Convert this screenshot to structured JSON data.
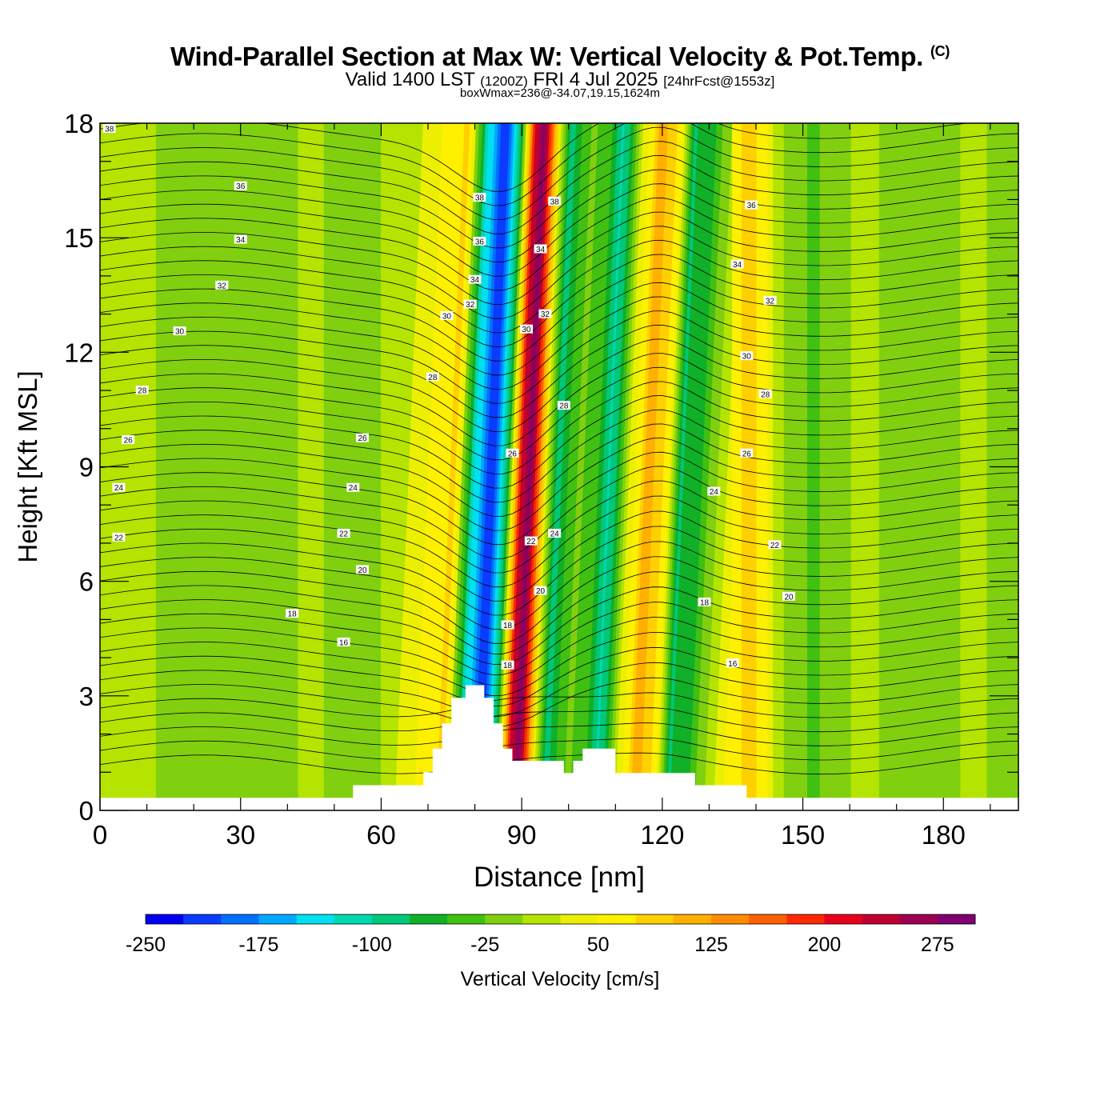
{
  "header": {
    "title": "Wind-Parallel Section at Max W: Vertical Velocity & Pot.Temp.",
    "title_mark": "(C)",
    "valid_prefix": "Valid 1400 LST",
    "valid_utc": "(1200Z)",
    "valid_date": "FRI 4 Jul 2025",
    "forecast": "[24hrFcst@1553z]",
    "box_info": "boxWmax=236@-34.07,19.15,1624m"
  },
  "chart_data": {
    "type": "heatmap",
    "xlabel": "Distance [nm]",
    "ylabel": "Height [Kft MSL]",
    "xlim": [
      0,
      196
    ],
    "ylim": [
      0,
      18
    ],
    "x_ticks": [
      0,
      30,
      60,
      90,
      120,
      150,
      180
    ],
    "y_ticks": [
      0,
      3,
      6,
      9,
      12,
      15,
      18
    ],
    "colorbar": {
      "label": "Vertical Velocity [cm/s]",
      "range": [
        -250,
        300
      ],
      "tick_values": [
        -250,
        -175,
        -100,
        -25,
        50,
        125,
        200,
        275
      ],
      "tick_labels": [
        "-250",
        "-175",
        "-100",
        "-25",
        "50",
        "125",
        "200",
        "275"
      ],
      "colors": [
        "#0000f0",
        "#0a3cff",
        "#0070ff",
        "#00a8ff",
        "#00e0f0",
        "#00d8b0",
        "#00c878",
        "#10b028",
        "#40c010",
        "#80d010",
        "#b4e400",
        "#ecf000",
        "#fff000",
        "#ffd000",
        "#ffb000",
        "#ff8c00",
        "#ff6000",
        "#ff2800",
        "#e8001c",
        "#c00030",
        "#9c0050",
        "#800070"
      ]
    },
    "velocity_bands": [
      {
        "x": 0,
        "value": 0
      },
      {
        "x": 12,
        "value": 0
      },
      {
        "x": 22,
        "value": -10
      },
      {
        "x": 35,
        "value": -15
      },
      {
        "x": 46,
        "value": 5
      },
      {
        "x": 57,
        "value": -20
      },
      {
        "x": 66,
        "value": 40
      },
      {
        "x": 73,
        "value": 80
      },
      {
        "x": 77,
        "value": -120
      },
      {
        "x": 81,
        "value": -230
      },
      {
        "x": 84,
        "value": -80
      },
      {
        "x": 87,
        "value": 220
      },
      {
        "x": 89,
        "value": 280
      },
      {
        "x": 92,
        "value": 60
      },
      {
        "x": 95,
        "value": -90
      },
      {
        "x": 99,
        "value": -20
      },
      {
        "x": 103,
        "value": -40
      },
      {
        "x": 106,
        "value": -110
      },
      {
        "x": 110,
        "value": 20
      },
      {
        "x": 114,
        "value": 110
      },
      {
        "x": 118,
        "value": 70
      },
      {
        "x": 121,
        "value": -80
      },
      {
        "x": 125,
        "value": -60
      },
      {
        "x": 129,
        "value": 0
      },
      {
        "x": 133,
        "value": 50
      },
      {
        "x": 139,
        "value": 90
      },
      {
        "x": 146,
        "value": 0
      },
      {
        "x": 152,
        "value": -30
      },
      {
        "x": 162,
        "value": 5
      },
      {
        "x": 175,
        "value": -10
      },
      {
        "x": 188,
        "value": 5
      },
      {
        "x": 196,
        "value": -20
      }
    ],
    "theta_contours": {
      "labels": [
        "38",
        "36",
        "34",
        "32",
        "30",
        "28",
        "26",
        "24",
        "22",
        "20",
        "18",
        "16"
      ],
      "label_points": [
        {
          "text": "38",
          "x": 2,
          "y": 17.85
        },
        {
          "text": "36",
          "x": 30,
          "y": 16.35
        },
        {
          "text": "34",
          "x": 30,
          "y": 14.95
        },
        {
          "text": "32",
          "x": 26,
          "y": 13.75
        },
        {
          "text": "30",
          "x": 17,
          "y": 12.55
        },
        {
          "text": "28",
          "x": 9,
          "y": 11.0
        },
        {
          "text": "26",
          "x": 6,
          "y": 9.7
        },
        {
          "text": "24",
          "x": 4,
          "y": 8.45
        },
        {
          "text": "22",
          "x": 4,
          "y": 7.15
        },
        {
          "text": "18",
          "x": 41,
          "y": 5.15
        },
        {
          "text": "16",
          "x": 52,
          "y": 4.4
        },
        {
          "text": "20",
          "x": 56,
          "y": 6.3
        },
        {
          "text": "22",
          "x": 52,
          "y": 7.25
        },
        {
          "text": "24",
          "x": 54,
          "y": 8.45
        },
        {
          "text": "26",
          "x": 56,
          "y": 9.75
        },
        {
          "text": "28",
          "x": 71,
          "y": 11.35
        },
        {
          "text": "30",
          "x": 74,
          "y": 12.95
        },
        {
          "text": "32",
          "x": 79,
          "y": 13.25
        },
        {
          "text": "34",
          "x": 80,
          "y": 13.9
        },
        {
          "text": "36",
          "x": 81,
          "y": 14.9
        },
        {
          "text": "38",
          "x": 81,
          "y": 16.05
        },
        {
          "text": "38",
          "x": 97,
          "y": 15.95
        },
        {
          "text": "34",
          "x": 94,
          "y": 14.7
        },
        {
          "text": "32",
          "x": 95,
          "y": 13.0
        },
        {
          "text": "30",
          "x": 91,
          "y": 12.6
        },
        {
          "text": "28",
          "x": 99,
          "y": 10.6
        },
        {
          "text": "26",
          "x": 88,
          "y": 9.35
        },
        {
          "text": "24",
          "x": 97,
          "y": 7.25
        },
        {
          "text": "22",
          "x": 92,
          "y": 7.05
        },
        {
          "text": "20",
          "x": 94,
          "y": 5.75
        },
        {
          "text": "18",
          "x": 87,
          "y": 4.85
        },
        {
          "text": "18",
          "x": 87,
          "y": 3.8
        },
        {
          "text": "36",
          "x": 139,
          "y": 15.85
        },
        {
          "text": "34",
          "x": 136,
          "y": 14.3
        },
        {
          "text": "32",
          "x": 143,
          "y": 13.35
        },
        {
          "text": "30",
          "x": 138,
          "y": 11.9
        },
        {
          "text": "28",
          "x": 142,
          "y": 10.9
        },
        {
          "text": "26",
          "x": 138,
          "y": 9.35
        },
        {
          "text": "24",
          "x": 131,
          "y": 8.35
        },
        {
          "text": "22",
          "x": 144,
          "y": 6.95
        },
        {
          "text": "20",
          "x": 147,
          "y": 5.6
        },
        {
          "text": "18",
          "x": 129,
          "y": 5.45
        },
        {
          "text": "16",
          "x": 135,
          "y": 3.85
        }
      ]
    },
    "terrain": [
      {
        "x": 0,
        "y": 0.33
      },
      {
        "x": 54,
        "y": 0.33
      },
      {
        "x": 54,
        "y": 0.66
      },
      {
        "x": 69,
        "y": 0.66
      },
      {
        "x": 69,
        "y": 1.0
      },
      {
        "x": 71,
        "y": 1.0
      },
      {
        "x": 71,
        "y": 1.62
      },
      {
        "x": 73,
        "y": 1.62
      },
      {
        "x": 73,
        "y": 2.28
      },
      {
        "x": 75,
        "y": 2.28
      },
      {
        "x": 75,
        "y": 2.95
      },
      {
        "x": 78,
        "y": 2.95
      },
      {
        "x": 78,
        "y": 3.28
      },
      {
        "x": 82,
        "y": 3.28
      },
      {
        "x": 82,
        "y": 2.95
      },
      {
        "x": 84,
        "y": 2.95
      },
      {
        "x": 84,
        "y": 2.28
      },
      {
        "x": 86,
        "y": 2.28
      },
      {
        "x": 86,
        "y": 1.62
      },
      {
        "x": 88,
        "y": 1.62
      },
      {
        "x": 88,
        "y": 1.3
      },
      {
        "x": 99,
        "y": 1.3
      },
      {
        "x": 99,
        "y": 0.98
      },
      {
        "x": 101,
        "y": 0.98
      },
      {
        "x": 101,
        "y": 1.3
      },
      {
        "x": 103,
        "y": 1.3
      },
      {
        "x": 103,
        "y": 1.62
      },
      {
        "x": 110,
        "y": 1.62
      },
      {
        "x": 110,
        "y": 0.98
      },
      {
        "x": 127,
        "y": 0.98
      },
      {
        "x": 127,
        "y": 0.66
      },
      {
        "x": 138,
        "y": 0.66
      },
      {
        "x": 138,
        "y": 0.33
      },
      {
        "x": 196,
        "y": 0.33
      }
    ]
  }
}
